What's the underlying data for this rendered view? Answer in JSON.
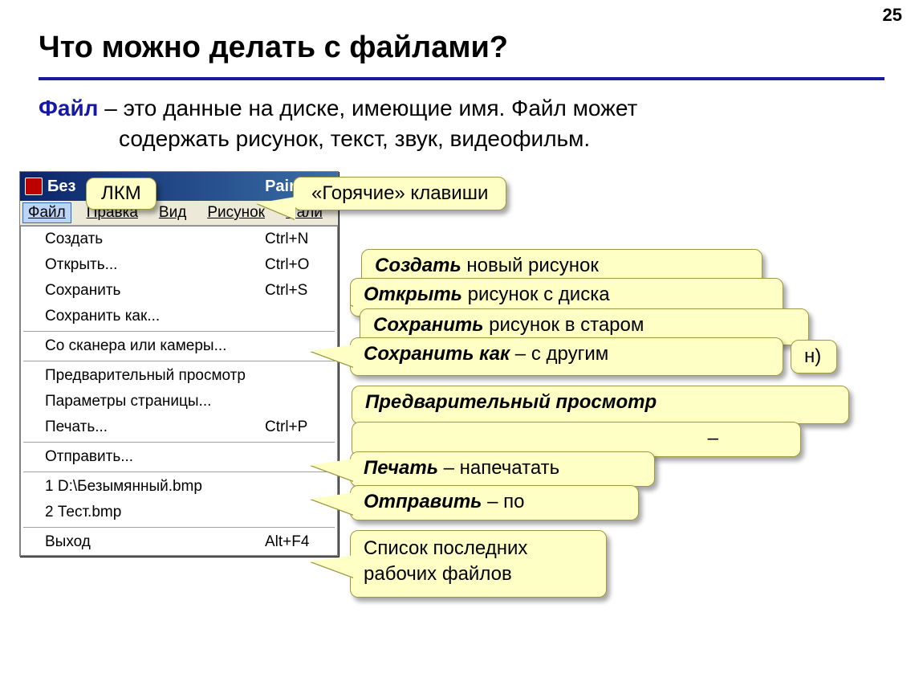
{
  "page_number": "25",
  "title": "Что можно делать с файлами?",
  "definition": {
    "term": "Файл",
    "line1": " – это данные на диске, имеющие имя. Файл может",
    "line2": "содержать рисунок, текст, звук, видеофильм."
  },
  "paint": {
    "window_title_prefix": "Без",
    "window_title_suffix": "Paint",
    "menubar": [
      "Файл",
      "Правка",
      "Вид",
      "Рисунок",
      "Пали"
    ],
    "menu_underline_index": [
      0,
      0,
      0,
      0,
      0
    ],
    "items": [
      {
        "label": "Создать",
        "shortcut": "Ctrl+N"
      },
      {
        "label": "Открыть...",
        "shortcut": "Ctrl+O"
      },
      {
        "label": "Сохранить",
        "shortcut": "Ctrl+S"
      },
      {
        "label": "Сохранить как...",
        "shortcut": ""
      },
      {
        "sep": true
      },
      {
        "label": "Со сканера или камеры...",
        "shortcut": ""
      },
      {
        "sep": true
      },
      {
        "label": "Предварительный просмотр",
        "shortcut": ""
      },
      {
        "label": "Параметры страницы...",
        "shortcut": ""
      },
      {
        "label": "Печать...",
        "shortcut": "Ctrl+P"
      },
      {
        "sep": true
      },
      {
        "label": "Отправить...",
        "shortcut": ""
      },
      {
        "sep": true
      },
      {
        "label": "1 D:\\Безымянный.bmp",
        "shortcut": ""
      },
      {
        "label": "2 Тест.bmp",
        "shortcut": ""
      },
      {
        "sep": true
      },
      {
        "label": "Выход",
        "shortcut": "Alt+F4"
      }
    ]
  },
  "callouts": {
    "lkm": {
      "text": "ЛКМ"
    },
    "hotkeys": {
      "text": "«Горячие» клавиши"
    },
    "create": {
      "bold": "Создать",
      "rest": " новый рисунок"
    },
    "open": {
      "bold": "Открыть",
      "rest": " рисунок с диска"
    },
    "save": {
      "bold": "Сохранить",
      "rest": " рисунок в старом"
    },
    "save_tail": {
      "text": "н)"
    },
    "saveas": {
      "bold": "Сохранить как",
      "rest": " – с  другим"
    },
    "preview": {
      "bold": "Предварительный просмотр",
      "rest": ""
    },
    "dash_only": {
      "text": " –"
    },
    "print": {
      "bold": "Печать",
      "rest": " – напечатать"
    },
    "send": {
      "bold": "Отправить",
      "rest": " – по"
    },
    "recent": {
      "line1": "Список последних",
      "line2": "рабочих файлов"
    }
  },
  "colors": {
    "bubble_bg": "#feffc5",
    "bubble_border": "#a09840",
    "title_rule": "#1a1a9e",
    "titlebar_from": "#0a246a",
    "titlebar_to": "#3a6ea5",
    "win_bg": "#d4d0c8",
    "menubar_bg": "#ece9d8"
  }
}
